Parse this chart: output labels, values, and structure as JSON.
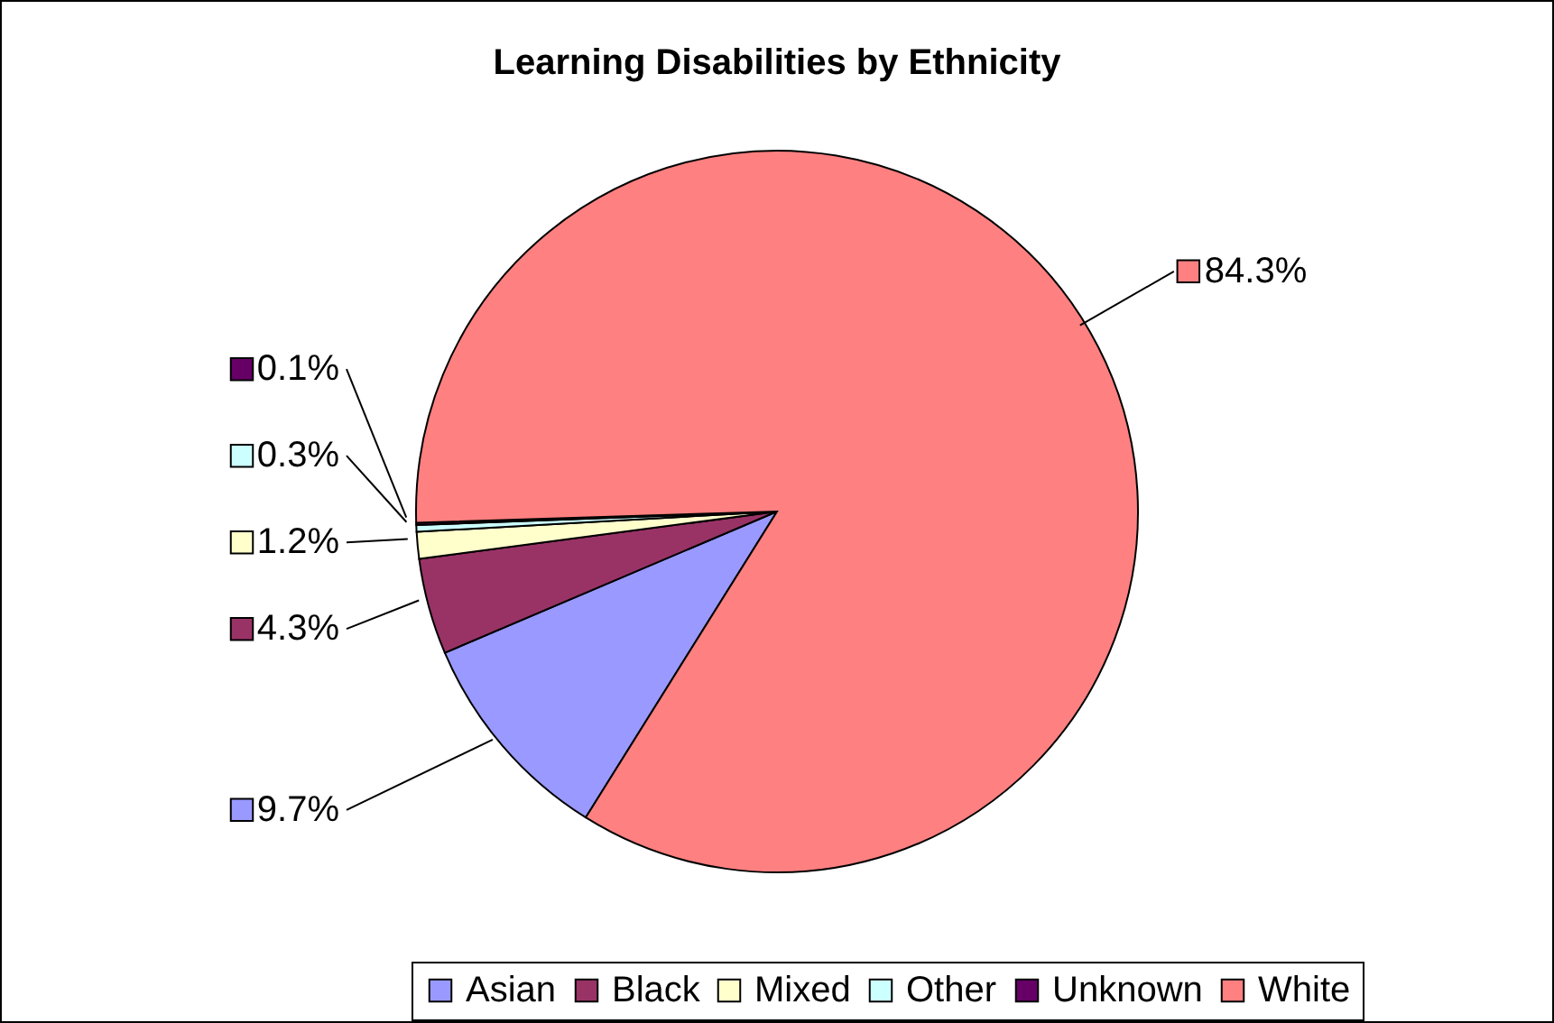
{
  "chart_data": {
    "type": "pie",
    "title": "Learning Disabilities by Ethnicity",
    "categories": [
      "Asian",
      "Black",
      "Mixed",
      "Other",
      "Unknown",
      "White"
    ],
    "values": [
      9.7,
      4.3,
      1.2,
      0.3,
      0.1,
      84.3
    ],
    "value_labels": [
      "9.7%",
      "4.3%",
      "1.2%",
      "0.3%",
      "0.1%",
      "84.3%"
    ],
    "colors": [
      "#9999ff",
      "#993366",
      "#ffffcc",
      "#ccffff",
      "#660066",
      "#ff8080"
    ],
    "legend": "bottom"
  }
}
